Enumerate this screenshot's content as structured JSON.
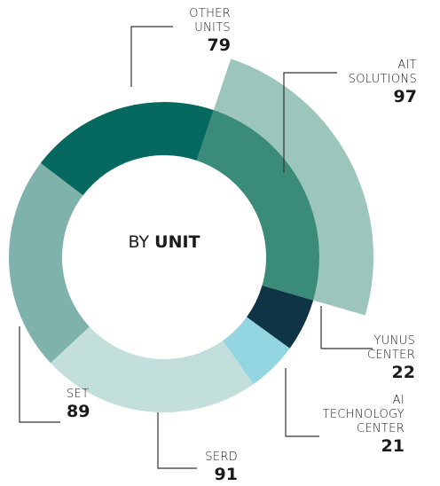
{
  "chart_data": {
    "type": "donut",
    "center_label": {
      "text": "BY",
      "emphasis": "UNIT"
    },
    "categories": [
      "AIT SOLUTIONS",
      "YUNUS CENTER",
      "AI TECHNOLOGY CENTER",
      "SERD",
      "SET",
      "OTHER UNITS"
    ],
    "values": [
      97,
      22,
      21,
      91,
      89,
      79
    ],
    "colors": [
      "#3a8c79",
      "#0e3446",
      "#93d5e0",
      "#c3dfdc",
      "#7fb2ab",
      "#06695f"
    ],
    "highlight": {
      "category": "AIT SOLUTIONS",
      "color": "#9cc5bb"
    }
  }
}
